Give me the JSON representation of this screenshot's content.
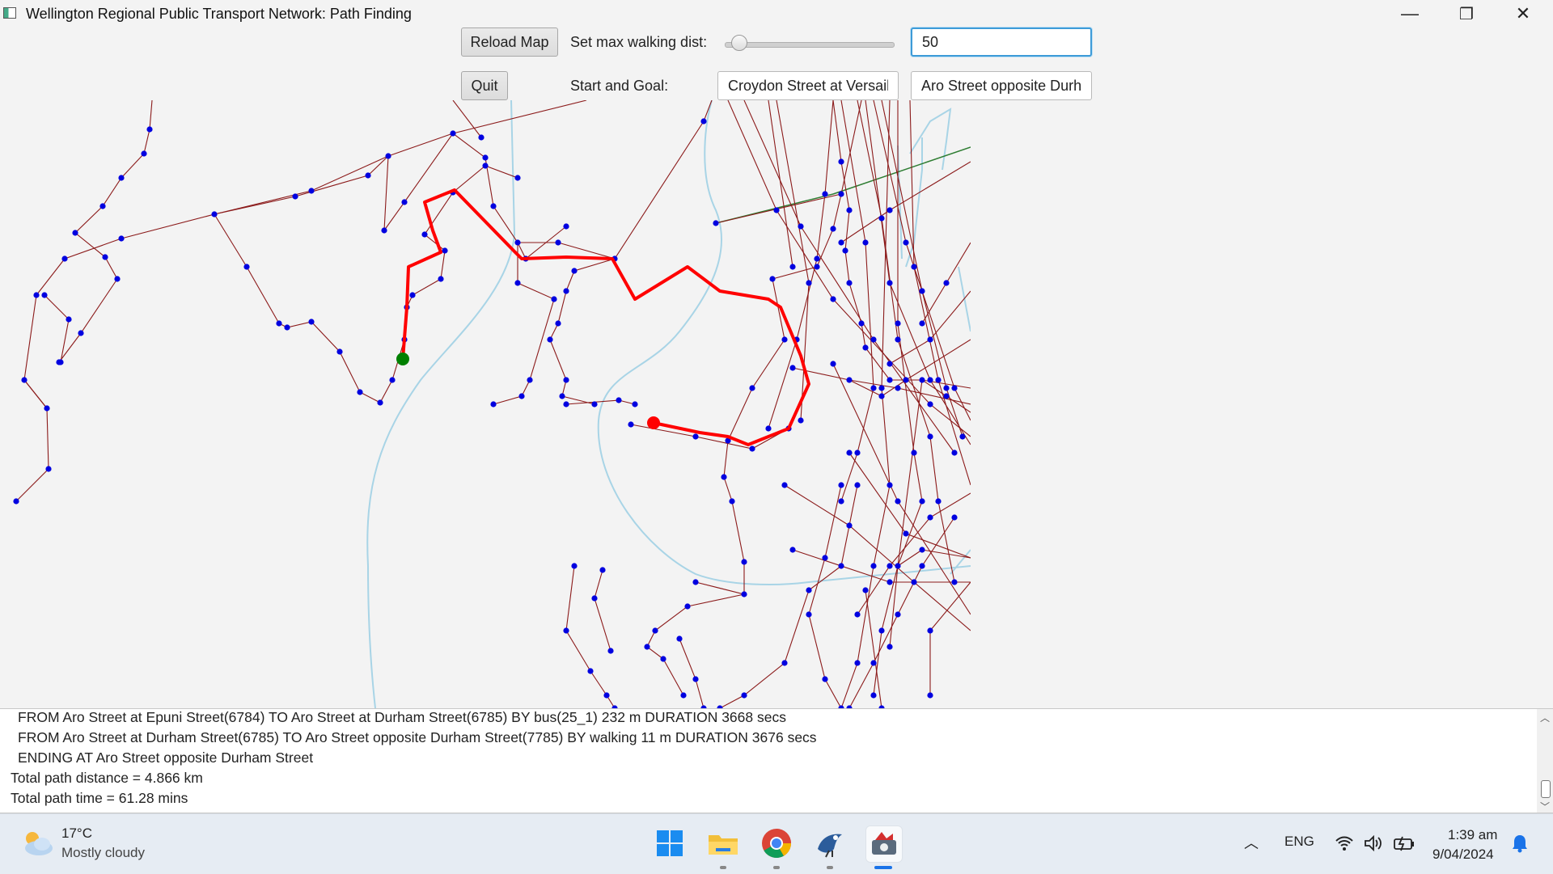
{
  "window": {
    "title": "Wellington Regional Public Transport Network: Path Finding",
    "minimize": "—",
    "restore": "❐",
    "close": "✕"
  },
  "controls": {
    "reload_label": "Reload Map",
    "quit_label": "Quit",
    "walk_label": "Set max walking dist:",
    "walk_value": "50",
    "start_goal_label": "Start and Goal:",
    "start_value": "Croydon Street at Versaill",
    "goal_value": "Aro Street opposite Durh"
  },
  "output": {
    "lines": [
      "FROM Aro Street at Epuni Street(6784)  TO Aro Street at Durham Street(6785)  BY bus(25_1)  232 m  DURATION 3668 secs",
      "FROM Aro Street at Durham Street(6785)  TO Aro Street opposite Durham Street(7785)  BY walking  11 m  DURATION 3676 secs",
      "ENDING AT Aro Street opposite Durham Street",
      "Total path distance = 4.866 km",
      "Total path time = 61.28 mins"
    ]
  },
  "taskbar": {
    "weather_temp": "17°C",
    "weather_desc": "Mostly cloudy",
    "lang": "ENG",
    "time": "1:39 am",
    "date": "9/04/2024",
    "apps": [
      "windows-start-icon",
      "file-explorer-icon",
      "chrome-icon",
      "bluej-icon",
      "java-app-icon"
    ]
  },
  "colors": {
    "route": "#8b1a1a",
    "stop": "#0000e0",
    "path": "#ff0000",
    "start": "#008000",
    "goal": "#ff0000",
    "water": "#a8d4e6",
    "rail": "#2e7d32"
  }
}
